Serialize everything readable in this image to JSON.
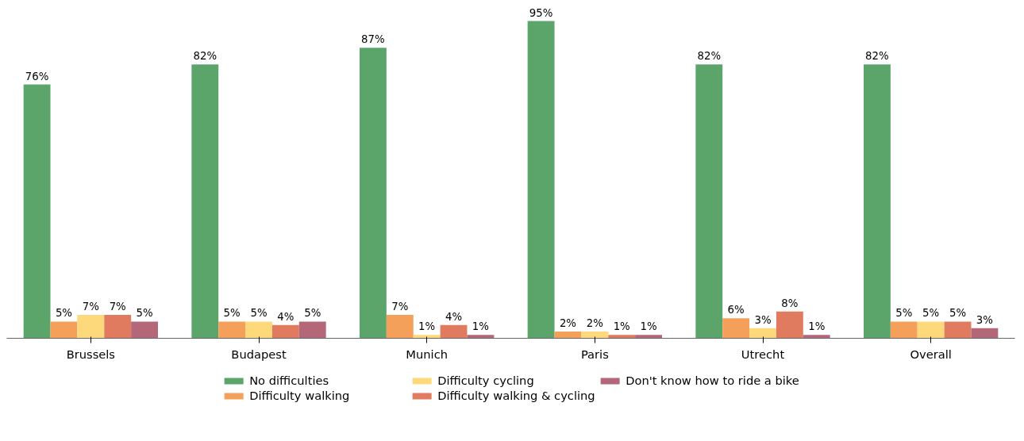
{
  "chart_data": {
    "type": "bar",
    "categories": [
      "Brussels",
      "Budapest",
      "Munich",
      "Paris",
      "Utrecht",
      "Overall"
    ],
    "series": [
      {
        "name": "No difficulties",
        "color": "#5ba56b",
        "values": [
          76,
          82,
          87,
          95,
          82,
          82
        ],
        "value_labels": [
          "76%",
          "82%",
          "87%",
          "95%",
          "82%",
          "82%"
        ]
      },
      {
        "name": "Difficulty walking",
        "color": "#f5a05a",
        "values": [
          5,
          5,
          7,
          2,
          6,
          5
        ],
        "value_labels": [
          "5%",
          "5%",
          "7%",
          "2%",
          "6%",
          "5%"
        ]
      },
      {
        "name": "Difficulty cycling",
        "color": "#fdd97c",
        "values": [
          7,
          5,
          1,
          2,
          3,
          5
        ],
        "value_labels": [
          "7%",
          "5%",
          "1%",
          "2%",
          "3%",
          "5%"
        ]
      },
      {
        "name": "Difficulty walking & cycling",
        "color": "#e07b5f",
        "values": [
          7,
          4,
          4,
          1,
          8,
          5
        ],
        "value_labels": [
          "7%",
          "4%",
          "4%",
          "1%",
          "8%",
          "5%"
        ]
      },
      {
        "name": "Don't know how to ride a bike",
        "color": "#b5677a",
        "values": [
          5,
          5,
          1,
          1,
          1,
          3
        ],
        "value_labels": [
          "5%",
          "5%",
          "1%",
          "1%",
          "1%",
          "3%"
        ]
      }
    ],
    "grid": false,
    "legend": "bottom"
  }
}
